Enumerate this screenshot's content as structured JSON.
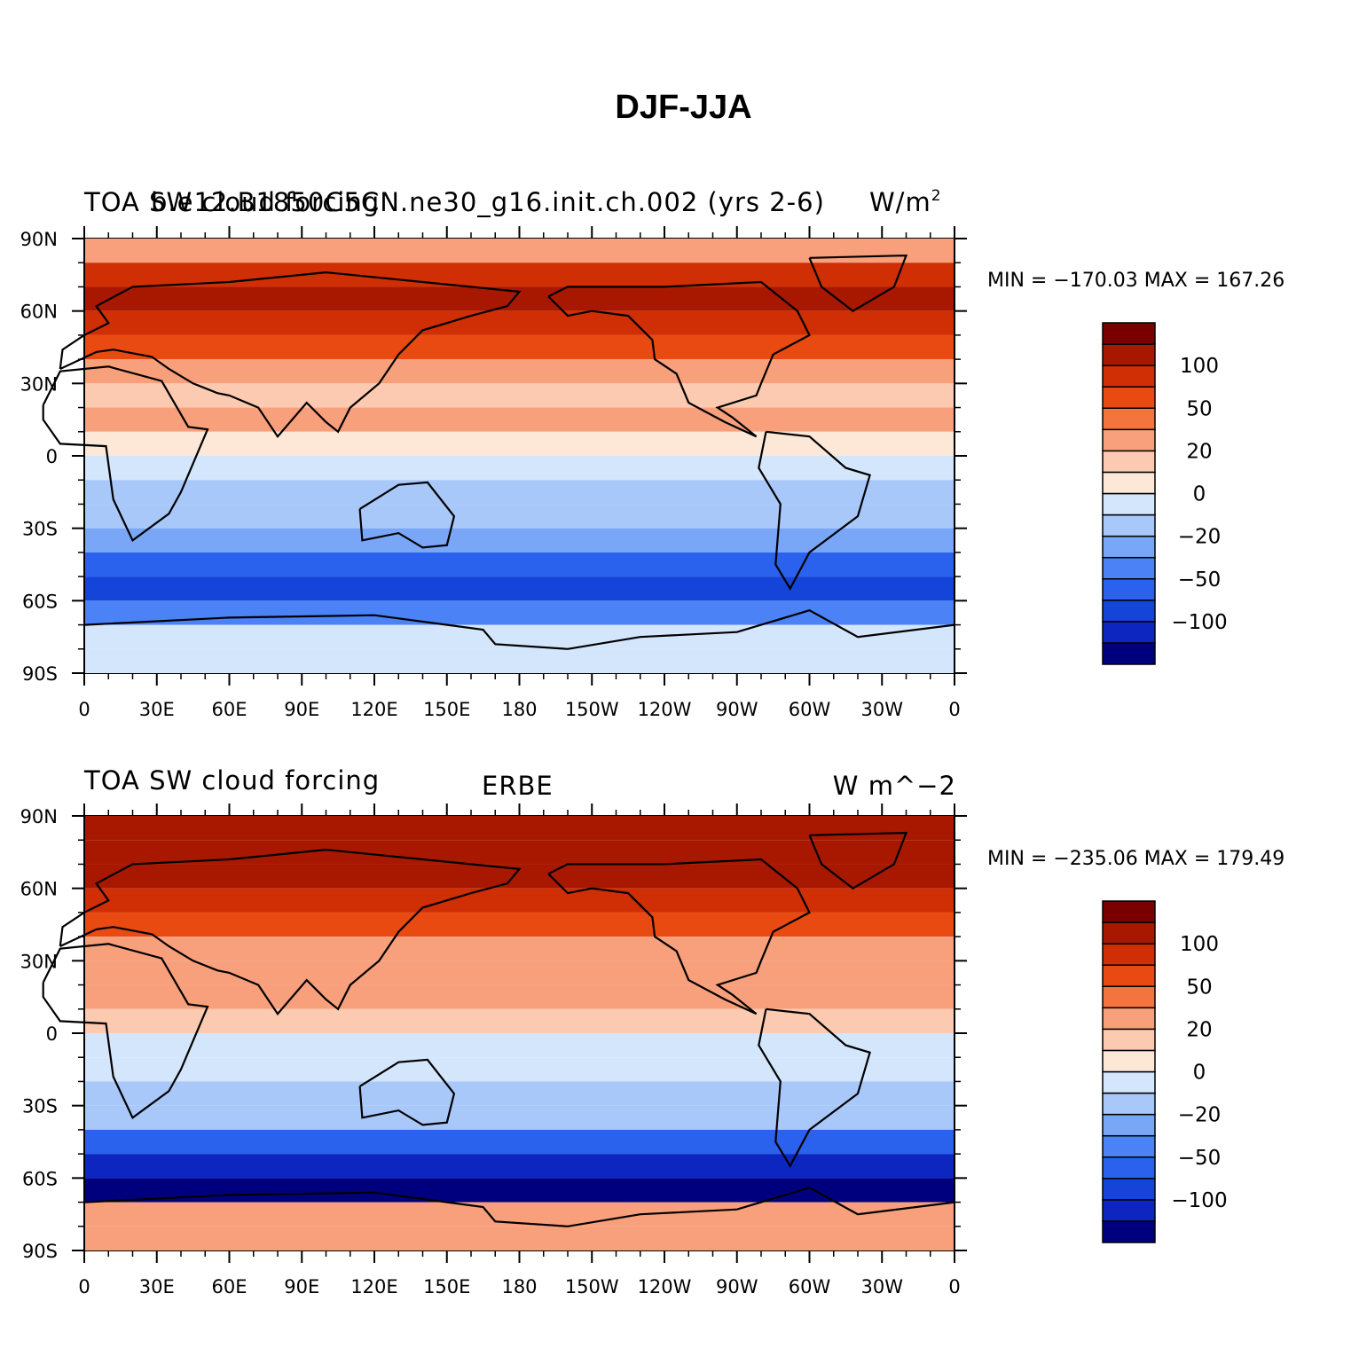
{
  "figure": {
    "title": "DJF-JJA"
  },
  "colors": {
    "levels": [
      "#00007f",
      "#0c26bf",
      "#1545d8",
      "#2a62ee",
      "#4b82f5",
      "#7aa6f8",
      "#a9c8fa",
      "#d4e6fc",
      "#fde8d8",
      "#fbcab0",
      "#f8a07c",
      "#f4743e",
      "#e84a12",
      "#d02e04",
      "#a81800",
      "#7a0000"
    ],
    "land_outline": "#000000",
    "missing": "#ffffff"
  },
  "chart_data": [
    {
      "type": "heatmap",
      "title_left": "TOA SW cloud forcing",
      "title_center": "b.e12.B1850C5CN.ne30_g16.init.ch.002 (yrs 2-6)",
      "units": "W/m",
      "units_sup": "2",
      "min_max": "MIN = −170.03  MAX = 167.26",
      "xlim": [
        0,
        360
      ],
      "ylim": [
        -90,
        90
      ],
      "x_tick_labels": [
        "0",
        "30E",
        "60E",
        "90E",
        "120E",
        "150E",
        "180",
        "150W",
        "120W",
        "90W",
        "60W",
        "30W",
        "0"
      ],
      "y_tick_labels": [
        "90N",
        "60N",
        "30N",
        "0",
        "30S",
        "60S",
        "90S"
      ],
      "colorbar_labels": [
        "100",
        "50",
        "20",
        "0",
        "−20",
        "−50",
        "−100"
      ],
      "zonal_mean": [
        {
          "lat": 85,
          "value": 30
        },
        {
          "lat": 75,
          "value": 75
        },
        {
          "lat": 65,
          "value": 80
        },
        {
          "lat": 55,
          "value": 70
        },
        {
          "lat": 45,
          "value": 50
        },
        {
          "lat": 35,
          "value": 25
        },
        {
          "lat": 25,
          "value": 15
        },
        {
          "lat": 15,
          "value": 20
        },
        {
          "lat": 5,
          "value": 5
        },
        {
          "lat": -5,
          "value": -15
        },
        {
          "lat": -15,
          "value": -25
        },
        {
          "lat": -25,
          "value": -30
        },
        {
          "lat": -35,
          "value": -45
        },
        {
          "lat": -45,
          "value": -80
        },
        {
          "lat": -55,
          "value": -95
        },
        {
          "lat": -65,
          "value": -60
        },
        {
          "lat": -75,
          "value": -5
        },
        {
          "lat": -85,
          "value": -5
        }
      ]
    },
    {
      "type": "heatmap",
      "title_left": "TOA SW cloud forcing",
      "title_center": "ERBE",
      "units": "W m^−2",
      "units_sup": "",
      "min_max": "MIN = −235.06  MAX = 179.49",
      "xlim": [
        0,
        360
      ],
      "ylim": [
        -90,
        90
      ],
      "x_tick_labels": [
        "0",
        "30E",
        "60E",
        "90E",
        "120E",
        "150E",
        "180",
        "150W",
        "120W",
        "90W",
        "60W",
        "30W",
        "0"
      ],
      "y_tick_labels": [
        "90N",
        "60N",
        "30N",
        "0",
        "30S",
        "60S",
        "90S"
      ],
      "colorbar_labels": [
        "100",
        "50",
        "20",
        "0",
        "−20",
        "−50",
        "−100"
      ],
      "zonal_mean": [
        {
          "lat": 85,
          "value": 80
        },
        {
          "lat": 75,
          "value": 95
        },
        {
          "lat": 65,
          "value": 85
        },
        {
          "lat": 55,
          "value": 75
        },
        {
          "lat": 45,
          "value": 55
        },
        {
          "lat": 35,
          "value": 30
        },
        {
          "lat": 25,
          "value": 20
        },
        {
          "lat": 15,
          "value": 25
        },
        {
          "lat": 5,
          "value": 10
        },
        {
          "lat": -5,
          "value": -20
        },
        {
          "lat": -15,
          "value": -20
        },
        {
          "lat": -25,
          "value": -25
        },
        {
          "lat": -35,
          "value": -40
        },
        {
          "lat": -45,
          "value": -70
        },
        {
          "lat": -55,
          "value": -110
        },
        {
          "lat": -65,
          "value": -150
        },
        {
          "lat": -75,
          "value": 30
        },
        {
          "lat": -85,
          "value": 25
        }
      ]
    }
  ]
}
